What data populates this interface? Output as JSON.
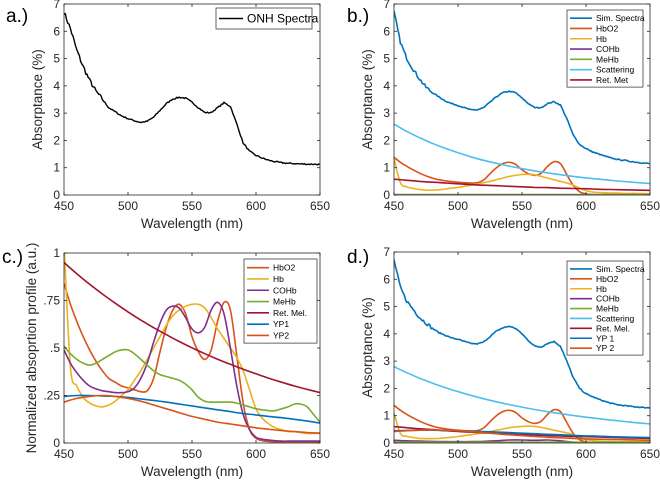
{
  "chart_data": [
    {
      "panel_label": "a.)",
      "type": "line",
      "xlabel": "Wavelength (nm)",
      "ylabel": "Absorptance (%)",
      "xlim": [
        450,
        650
      ],
      "ylim": [
        0,
        7
      ],
      "xticks": [
        450,
        500,
        550,
        600,
        650
      ],
      "xtick_labels": [
        "450",
        "500",
        "550",
        "600",
        "650"
      ],
      "yticks": [
        0,
        1,
        2,
        3,
        4,
        5,
        6,
        7
      ],
      "ytick_labels": [
        "0",
        "1",
        "2",
        "3",
        "4",
        "5",
        "6",
        "7"
      ],
      "legend_position": "top-right",
      "series": [
        {
          "name": "ONH Spectra",
          "color": "#000000",
          "grid": "fine",
          "noisy": true,
          "values": [
            6.7,
            6.1,
            5.3,
            4.7,
            4.2,
            3.8,
            3.5,
            3.2,
            3.05,
            2.9,
            2.8,
            2.72,
            2.66,
            2.7,
            2.85,
            3.1,
            3.35,
            3.52,
            3.58,
            3.55,
            3.4,
            3.2,
            3.02,
            3.02,
            3.2,
            3.38,
            3.25,
            2.6,
            1.9,
            1.6,
            1.45,
            1.35,
            1.27,
            1.22,
            1.18,
            1.16,
            1.15,
            1.14,
            1.13,
            1.13,
            1.12
          ]
        }
      ]
    },
    {
      "panel_label": "b.)",
      "type": "line",
      "xlabel": "Wavelength (nm)",
      "ylabel": "Absorptance (%)",
      "xlim": [
        450,
        650
      ],
      "ylim": [
        0,
        7
      ],
      "xticks": [
        450,
        500,
        550,
        600,
        650
      ],
      "xtick_labels": [
        "450",
        "500",
        "550",
        "600",
        "650"
      ],
      "yticks": [
        0,
        1,
        2,
        3,
        4,
        5,
        6,
        7
      ],
      "ytick_labels": [
        "0",
        "1",
        "2",
        "3",
        "4",
        "5",
        "6",
        "7"
      ],
      "legend_position": "top-right",
      "series": [
        {
          "name": "Sim. Spectra",
          "color": "#0072BD",
          "grid": "fine",
          "noisy": true,
          "values": [
            6.7,
            5.6,
            5.0,
            4.6,
            4.25,
            3.95,
            3.75,
            3.6,
            3.45,
            3.35,
            3.28,
            3.2,
            3.12,
            3.12,
            3.2,
            3.4,
            3.6,
            3.75,
            3.8,
            3.75,
            3.55,
            3.35,
            3.2,
            3.2,
            3.35,
            3.42,
            3.3,
            2.8,
            2.2,
            1.85,
            1.7,
            1.58,
            1.5,
            1.42,
            1.35,
            1.3,
            1.27,
            1.23,
            1.2,
            1.17,
            1.15
          ]
        },
        {
          "name": "HbO2",
          "color": "#D95319",
          "grid": "fine",
          "values": [
            1.38,
            1.2,
            1.05,
            0.92,
            0.8,
            0.7,
            0.62,
            0.56,
            0.52,
            0.49,
            0.47,
            0.45,
            0.44,
            0.45,
            0.55,
            0.78,
            1.0,
            1.15,
            1.2,
            1.12,
            0.92,
            0.78,
            0.72,
            0.8,
            1.05,
            1.22,
            1.15,
            0.75,
            0.35,
            0.12,
            0.04,
            0.02,
            0.01,
            0.01,
            0.01,
            0.01,
            0.01,
            0.01,
            0.01,
            0.01,
            0.01
          ]
        },
        {
          "name": "Hb",
          "color": "#EDB120",
          "grid": "fine",
          "values": [
            1.35,
            0.45,
            0.3,
            0.24,
            0.2,
            0.18,
            0.18,
            0.19,
            0.22,
            0.25,
            0.28,
            0.32,
            0.36,
            0.4,
            0.45,
            0.5,
            0.56,
            0.62,
            0.68,
            0.72,
            0.75,
            0.76,
            0.74,
            0.68,
            0.62,
            0.56,
            0.5,
            0.44,
            0.36,
            0.25,
            0.16,
            0.11,
            0.09,
            0.08,
            0.07,
            0.07,
            0.06,
            0.06,
            0.06,
            0.05,
            0.05
          ]
        },
        {
          "name": "COHb",
          "color": "#7E2F8E",
          "grid": "coarse",
          "values": [
            0.01,
            0.01,
            0.01,
            0.01,
            0.01,
            0.01,
            0.01,
            0.01,
            0.01,
            0.01,
            0.01,
            0.01,
            0.01,
            0.01,
            0.01,
            0.01,
            0.01,
            0.01,
            0.01,
            0.01,
            0.01
          ]
        },
        {
          "name": "MeHb",
          "color": "#77AC30",
          "grid": "coarse",
          "values": [
            0.01,
            0.01,
            0.01,
            0.01,
            0.01,
            0.01,
            0.01,
            0.01,
            0.01,
            0.01,
            0.01,
            0.01,
            0.01,
            0.01,
            0.01,
            0.01,
            0.01,
            0.01,
            0.01,
            0.01,
            0.01
          ]
        },
        {
          "name": "Scattering",
          "color": "#4DBEEE",
          "grid": "coarse",
          "values": [
            2.6,
            2.33,
            2.1,
            1.89,
            1.71,
            1.55,
            1.4,
            1.27,
            1.16,
            1.06,
            0.966,
            0.884,
            0.81,
            0.743,
            0.683,
            0.628,
            0.579,
            0.534,
            0.493,
            0.456,
            0.422
          ]
        },
        {
          "name": "Ret. Met",
          "color": "#A2142F",
          "grid": "coarse",
          "values": [
            0.58,
            0.54,
            0.5,
            0.47,
            0.44,
            0.41,
            0.38,
            0.36,
            0.34,
            0.32,
            0.3,
            0.28,
            0.27,
            0.25,
            0.24,
            0.23,
            0.21,
            0.2,
            0.19,
            0.18,
            0.17
          ]
        }
      ]
    },
    {
      "panel_label": "c.)",
      "type": "line",
      "xlabel": "Wavelength (nm)",
      "ylabel": "Normalized absoprtion profile (a.u.)",
      "xlim": [
        450,
        650
      ],
      "ylim": [
        0,
        1
      ],
      "xticks": [
        450,
        500,
        550,
        600,
        650
      ],
      "xtick_labels": [
        "450",
        "500",
        "550",
        "600",
        "650"
      ],
      "yticks": [
        0,
        0.25,
        0.5,
        0.75,
        1
      ],
      "ytick_labels": [
        "0",
        ".25",
        ".5",
        ".75",
        "1"
      ],
      "legend_position": "top-right",
      "series": [
        {
          "name": "HbO2",
          "color": "#D95319",
          "grid": "fine",
          "values": [
            0.84,
            0.73,
            0.64,
            0.56,
            0.49,
            0.43,
            0.38,
            0.34,
            0.32,
            0.3,
            0.29,
            0.28,
            0.27,
            0.275,
            0.34,
            0.48,
            0.61,
            0.7,
            0.73,
            0.68,
            0.56,
            0.48,
            0.44,
            0.49,
            0.64,
            0.74,
            0.7,
            0.46,
            0.21,
            0.07,
            0.025,
            0.012,
            0.008,
            0.006,
            0.006,
            0.006,
            0.006,
            0.006,
            0.006,
            0.006,
            0.006
          ]
        },
        {
          "name": "Hb",
          "color": "#EDB120",
          "grid": "fine",
          "values": [
            1.05,
            0.4,
            0.3,
            0.24,
            0.21,
            0.195,
            0.19,
            0.2,
            0.22,
            0.25,
            0.28,
            0.33,
            0.38,
            0.44,
            0.5,
            0.56,
            0.62,
            0.67,
            0.7,
            0.72,
            0.73,
            0.73,
            0.71,
            0.66,
            0.6,
            0.55,
            0.5,
            0.45,
            0.38,
            0.28,
            0.18,
            0.13,
            0.1,
            0.08,
            0.07,
            0.06,
            0.06,
            0.055,
            0.05,
            0.05,
            0.05
          ]
        },
        {
          "name": "COHb",
          "color": "#7E2F8E",
          "grid": "fine",
          "values": [
            0.49,
            0.42,
            0.37,
            0.33,
            0.3,
            0.285,
            0.275,
            0.27,
            0.265,
            0.265,
            0.27,
            0.29,
            0.34,
            0.42,
            0.53,
            0.63,
            0.7,
            0.72,
            0.71,
            0.66,
            0.6,
            0.58,
            0.61,
            0.7,
            0.74,
            0.68,
            0.5,
            0.3,
            0.15,
            0.07,
            0.03,
            0.02,
            0.015,
            0.012,
            0.01,
            0.01,
            0.01,
            0.01,
            0.01,
            0.01,
            0.01
          ]
        },
        {
          "name": "MeHb",
          "color": "#77AC30",
          "grid": "fine",
          "values": [
            0.51,
            0.47,
            0.44,
            0.42,
            0.41,
            0.42,
            0.44,
            0.46,
            0.48,
            0.49,
            0.49,
            0.47,
            0.44,
            0.41,
            0.38,
            0.36,
            0.35,
            0.34,
            0.33,
            0.31,
            0.28,
            0.24,
            0.22,
            0.215,
            0.215,
            0.215,
            0.215,
            0.21,
            0.2,
            0.19,
            0.18,
            0.175,
            0.17,
            0.17,
            0.18,
            0.19,
            0.205,
            0.205,
            0.19,
            0.15,
            0.11
          ]
        },
        {
          "name": "Ret. Mel.",
          "color": "#A2142F",
          "grid": "coarse",
          "values": [
            0.95,
            0.891,
            0.836,
            0.784,
            0.736,
            0.69,
            0.647,
            0.607,
            0.57,
            0.534,
            0.501,
            0.47,
            0.441,
            0.414,
            0.388,
            0.364,
            0.341,
            0.32,
            0.3,
            0.282,
            0.265
          ]
        },
        {
          "name": "YP1",
          "color": "#0072BD",
          "grid": "coarse",
          "values": [
            0.245,
            0.25,
            0.25,
            0.248,
            0.245,
            0.24,
            0.232,
            0.224,
            0.215,
            0.205,
            0.195,
            0.185,
            0.175,
            0.165,
            0.155,
            0.148,
            0.14,
            0.133,
            0.125,
            0.115,
            0.105
          ]
        },
        {
          "name": "YP2",
          "color": "#D95319",
          "grid": "coarse",
          "values": [
            0.215,
            0.235,
            0.245,
            0.25,
            0.245,
            0.235,
            0.22,
            0.2,
            0.18,
            0.16,
            0.14,
            0.125,
            0.11,
            0.1,
            0.09,
            0.08,
            0.072,
            0.065,
            0.06,
            0.055,
            0.052
          ]
        }
      ]
    },
    {
      "panel_label": "d.)",
      "type": "line",
      "xlabel": "Wavelength (nm)",
      "ylabel": "Absorptance (%)",
      "xlim": [
        450,
        650
      ],
      "ylim": [
        0,
        7
      ],
      "xticks": [
        450,
        500,
        550,
        600,
        650
      ],
      "xtick_labels": [
        "450",
        "500",
        "550",
        "600",
        "650"
      ],
      "yticks": [
        0,
        1,
        2,
        3,
        4,
        5,
        6,
        7
      ],
      "ytick_labels": [
        "0",
        "1",
        "2",
        "3",
        "4",
        "5",
        "6",
        "7"
      ],
      "legend_position": "top-right",
      "series": [
        {
          "name": "Sim. Spectra",
          "color": "#0072BD",
          "grid": "fine",
          "noisy": true,
          "values": [
            6.7,
            5.7,
            5.2,
            4.9,
            4.6,
            4.4,
            4.2,
            4.05,
            3.95,
            3.85,
            3.8,
            3.72,
            3.65,
            3.63,
            3.7,
            3.9,
            4.1,
            4.22,
            4.28,
            4.2,
            4.0,
            3.75,
            3.55,
            3.52,
            3.65,
            3.72,
            3.55,
            3.0,
            2.4,
            2.0,
            1.8,
            1.7,
            1.6,
            1.52,
            1.45,
            1.4,
            1.37,
            1.34,
            1.32,
            1.3,
            1.29
          ]
        },
        {
          "name": "HbO2",
          "color": "#D95319",
          "grid": "fine",
          "values": [
            1.38,
            1.2,
            1.05,
            0.92,
            0.8,
            0.7,
            0.62,
            0.56,
            0.52,
            0.49,
            0.47,
            0.45,
            0.44,
            0.45,
            0.55,
            0.78,
            1.0,
            1.15,
            1.2,
            1.12,
            0.92,
            0.78,
            0.72,
            0.8,
            1.05,
            1.22,
            1.15,
            0.75,
            0.35,
            0.12,
            0.04,
            0.02,
            0.01,
            0.01,
            0.01,
            0.01,
            0.01,
            0.01,
            0.01,
            0.01,
            0.01
          ]
        },
        {
          "name": "Hb",
          "color": "#EDB120",
          "grid": "fine",
          "values": [
            1.1,
            0.35,
            0.25,
            0.2,
            0.17,
            0.16,
            0.16,
            0.17,
            0.19,
            0.21,
            0.24,
            0.27,
            0.3,
            0.34,
            0.38,
            0.42,
            0.47,
            0.51,
            0.56,
            0.59,
            0.61,
            0.62,
            0.61,
            0.57,
            0.52,
            0.47,
            0.42,
            0.37,
            0.3,
            0.2,
            0.13,
            0.09,
            0.07,
            0.06,
            0.06,
            0.05,
            0.05,
            0.05,
            0.05,
            0.05,
            0.05
          ]
        },
        {
          "name": "COHb",
          "color": "#7E2F8E",
          "grid": "coarse",
          "values": [
            0.1,
            0.08,
            0.07,
            0.06,
            0.05,
            0.05,
            0.05,
            0.06,
            0.08,
            0.11,
            0.11,
            0.1,
            0.11,
            0.08,
            0.03,
            0.01,
            0.01,
            0.01,
            0.01,
            0.01,
            0.01
          ]
        },
        {
          "name": "MeHb",
          "color": "#77AC30",
          "grid": "coarse",
          "values": [
            0.03,
            0.03,
            0.03,
            0.03,
            0.03,
            0.03,
            0.03,
            0.03,
            0.03,
            0.03,
            0.03,
            0.03,
            0.03,
            0.03,
            0.03,
            0.03,
            0.03,
            0.03,
            0.03,
            0.03,
            0.03
          ]
        },
        {
          "name": "Scattering",
          "color": "#4DBEEE",
          "grid": "coarse",
          "values": [
            2.8,
            2.576,
            2.375,
            2.195,
            2.03,
            1.882,
            1.747,
            1.623,
            1.511,
            1.408,
            1.314,
            1.227,
            1.147,
            1.075,
            1.008,
            0.947,
            0.89,
            0.837,
            0.788,
            0.742,
            0.7
          ]
        },
        {
          "name": "Ret. Mel.",
          "color": "#A2142F",
          "grid": "coarse",
          "values": [
            0.6,
            0.56,
            0.52,
            0.49,
            0.45,
            0.42,
            0.4,
            0.37,
            0.35,
            0.33,
            0.31,
            0.29,
            0.27,
            0.26,
            0.24,
            0.23,
            0.22,
            0.2,
            0.19,
            0.18,
            0.17
          ]
        },
        {
          "name": "YP 1",
          "color": "#0072BD",
          "grid": "coarse",
          "values": [
            0.45,
            0.46,
            0.47,
            0.47,
            0.46,
            0.45,
            0.44,
            0.42,
            0.4,
            0.38,
            0.36,
            0.34,
            0.32,
            0.3,
            0.28,
            0.26,
            0.25,
            0.23,
            0.22,
            0.21,
            0.2
          ]
        },
        {
          "name": "YP 2",
          "color": "#D95319",
          "grid": "coarse",
          "values": [
            0.42,
            0.45,
            0.47,
            0.48,
            0.47,
            0.45,
            0.42,
            0.38,
            0.34,
            0.3,
            0.27,
            0.24,
            0.21,
            0.19,
            0.17,
            0.15,
            0.14,
            0.13,
            0.12,
            0.11,
            0.1
          ]
        }
      ]
    }
  ]
}
